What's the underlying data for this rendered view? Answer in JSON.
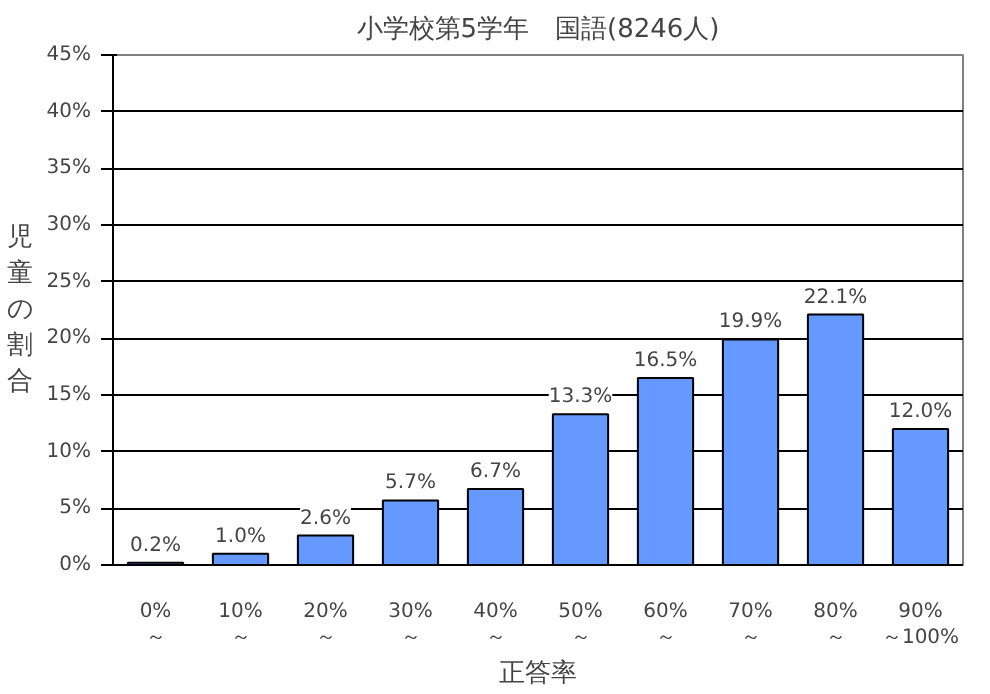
{
  "chart_data": {
    "type": "bar",
    "title": "小学校第5学年　国語(8246人)",
    "xlabel": "正答率",
    "ylabel": "児童の割合",
    "categories": [
      "0%\n～",
      "10%\n～",
      "20%\n～",
      "30%\n～",
      "40%\n～",
      "50%\n～",
      "60%\n～",
      "70%\n～",
      "80%\n～",
      "90%\n～100%"
    ],
    "values": [
      0.2,
      1.0,
      2.6,
      5.7,
      6.7,
      13.3,
      16.5,
      19.9,
      22.1,
      12.0
    ],
    "value_labels": [
      "0.2%",
      "1.0%",
      "2.6%",
      "5.7%",
      "6.7%",
      "13.3%",
      "16.5%",
      "19.9%",
      "22.1%",
      "12.0%"
    ],
    "color": "#6699ff",
    "ylim": [
      0,
      45
    ],
    "yticks": [
      {
        "value": 0,
        "label": "0%"
      },
      {
        "value": 5,
        "label": "5%"
      },
      {
        "value": 10,
        "label": "10%"
      },
      {
        "value": 15,
        "label": "15%"
      },
      {
        "value": 20,
        "label": "20%"
      },
      {
        "value": 25,
        "label": "25%"
      },
      {
        "value": 30,
        "label": "30%"
      },
      {
        "value": 35,
        "label": "35%"
      },
      {
        "value": 40,
        "label": "40%"
      },
      {
        "value": 45,
        "label": "45%"
      }
    ],
    "grid": "y"
  }
}
